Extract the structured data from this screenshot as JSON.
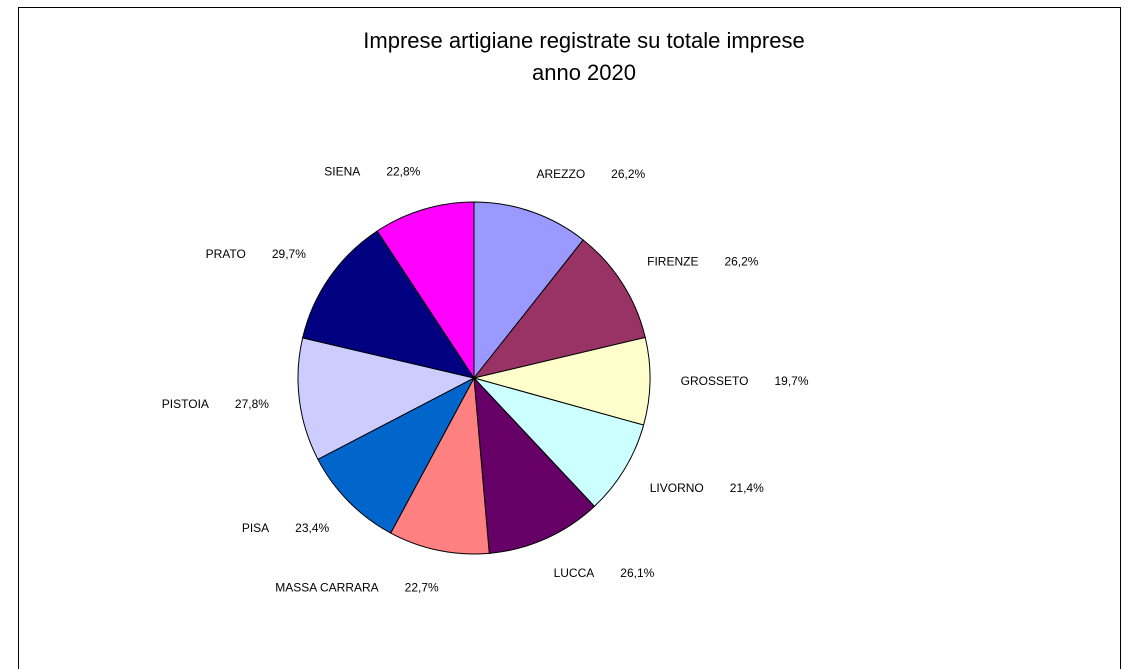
{
  "chart_data": {
    "type": "pie",
    "title": [
      "Imprese artigiane registrate su totale imprese",
      "anno 2020"
    ],
    "categories": [
      "AREZZO",
      "FIRENZE",
      "GROSSETO",
      "LIVORNO",
      "LUCCA",
      "MASSA CARRARA",
      "PISA",
      "PISTOIA",
      "PRATO",
      "SIENA"
    ],
    "values": [
      26.2,
      26.2,
      19.7,
      21.4,
      26.1,
      22.7,
      23.4,
      27.8,
      29.7,
      22.8
    ],
    "value_labels": [
      "26,2%",
      "26,2%",
      "19,7%",
      "21,4%",
      "26,1%",
      "22,7%",
      "23,4%",
      "27,8%",
      "29,7%",
      "22,8%"
    ],
    "colors": [
      "#9999ff",
      "#993366",
      "#ffffcc",
      "#ccffff",
      "#660066",
      "#ff8080",
      "#0066cc",
      "#ccccff",
      "#000080",
      "#ff00ff"
    ]
  }
}
